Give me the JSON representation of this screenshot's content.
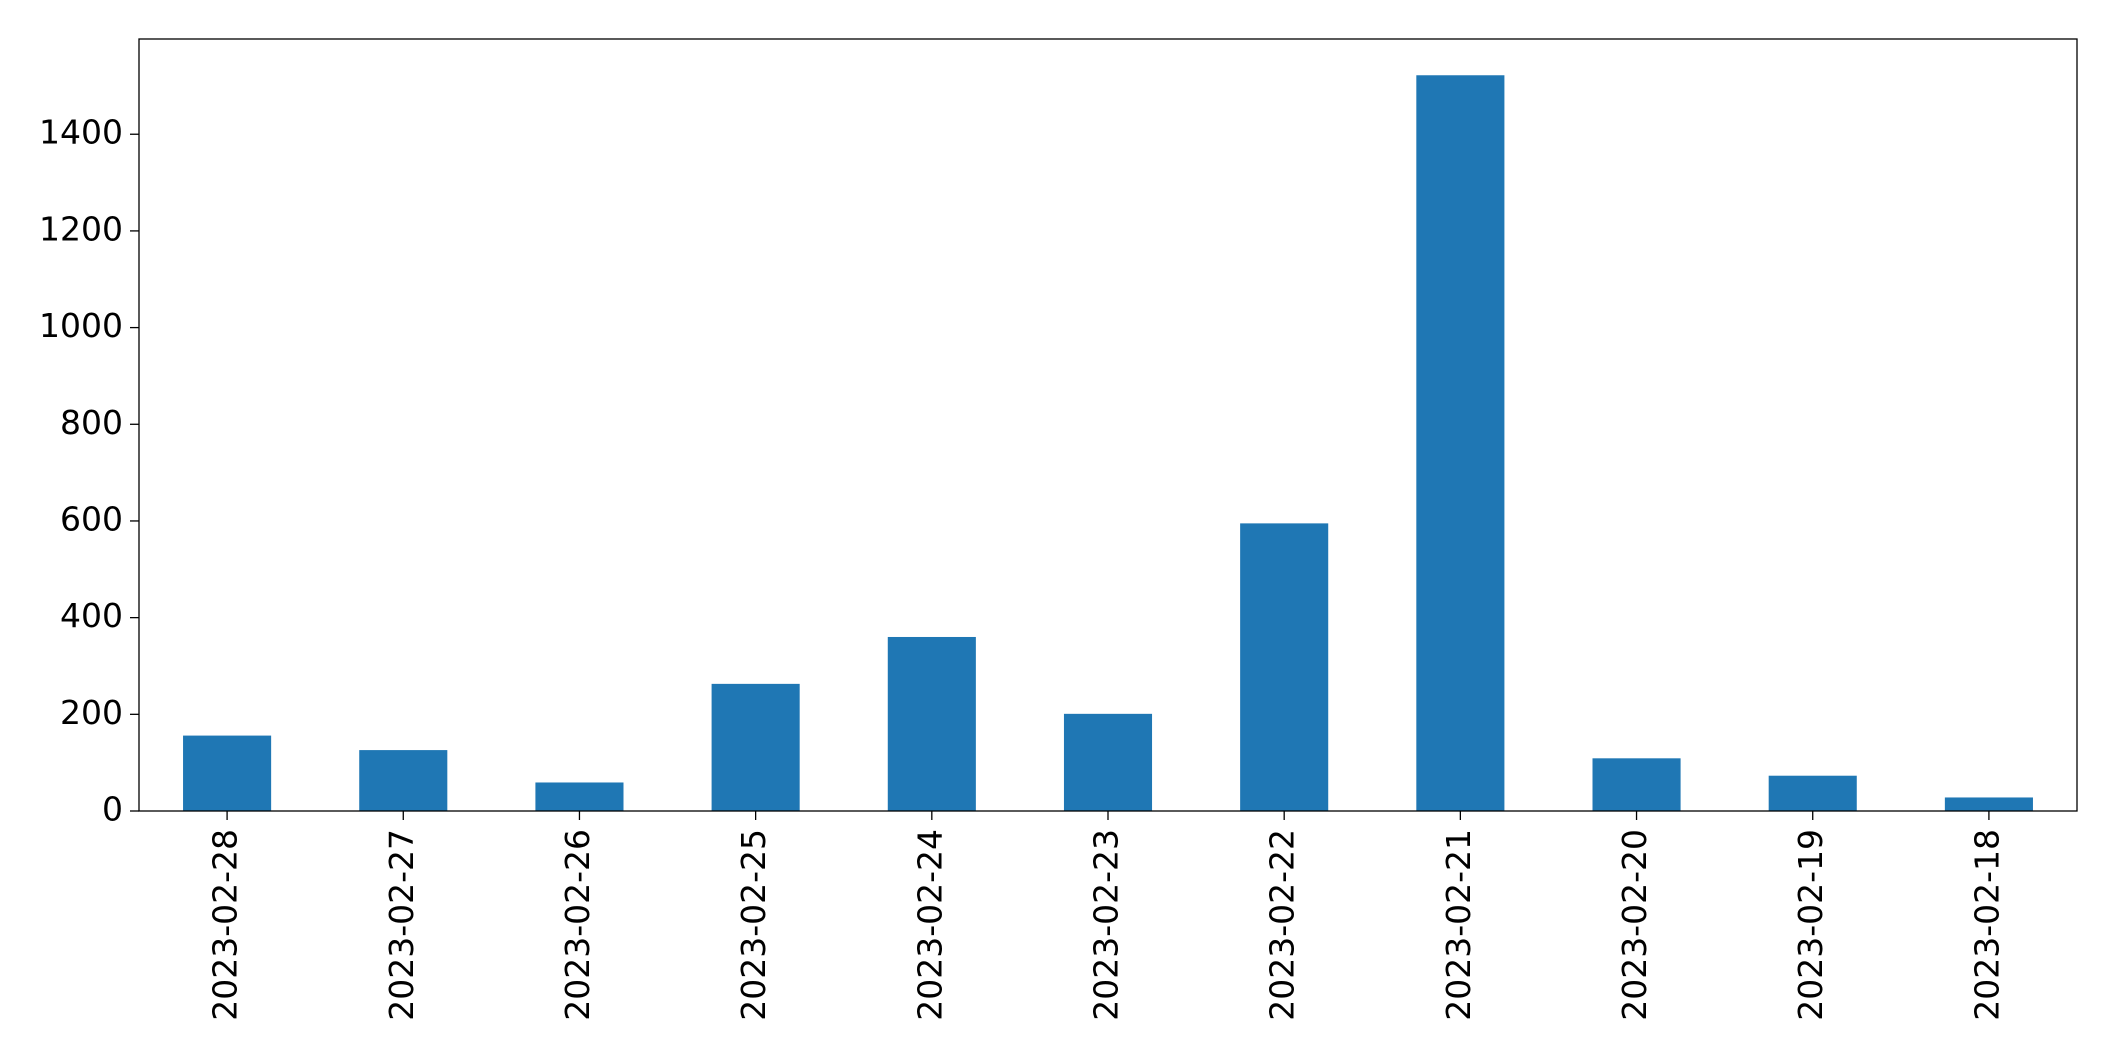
{
  "chart_data": {
    "type": "bar",
    "categories": [
      "2023-02-28",
      "2023-02-27",
      "2023-02-26",
      "2023-02-25",
      "2023-02-24",
      "2023-02-23",
      "2023-02-22",
      "2023-02-21",
      "2023-02-20",
      "2023-02-19",
      "2023-02-18"
    ],
    "values": [
      156,
      126,
      59,
      263,
      360,
      201,
      595,
      1522,
      109,
      73,
      28
    ],
    "color": "#1f77b4",
    "ylim": [
      0,
      1597
    ],
    "yticks": [
      0,
      200,
      400,
      600,
      800,
      1000,
      1200,
      1400
    ],
    "grid": false
  }
}
